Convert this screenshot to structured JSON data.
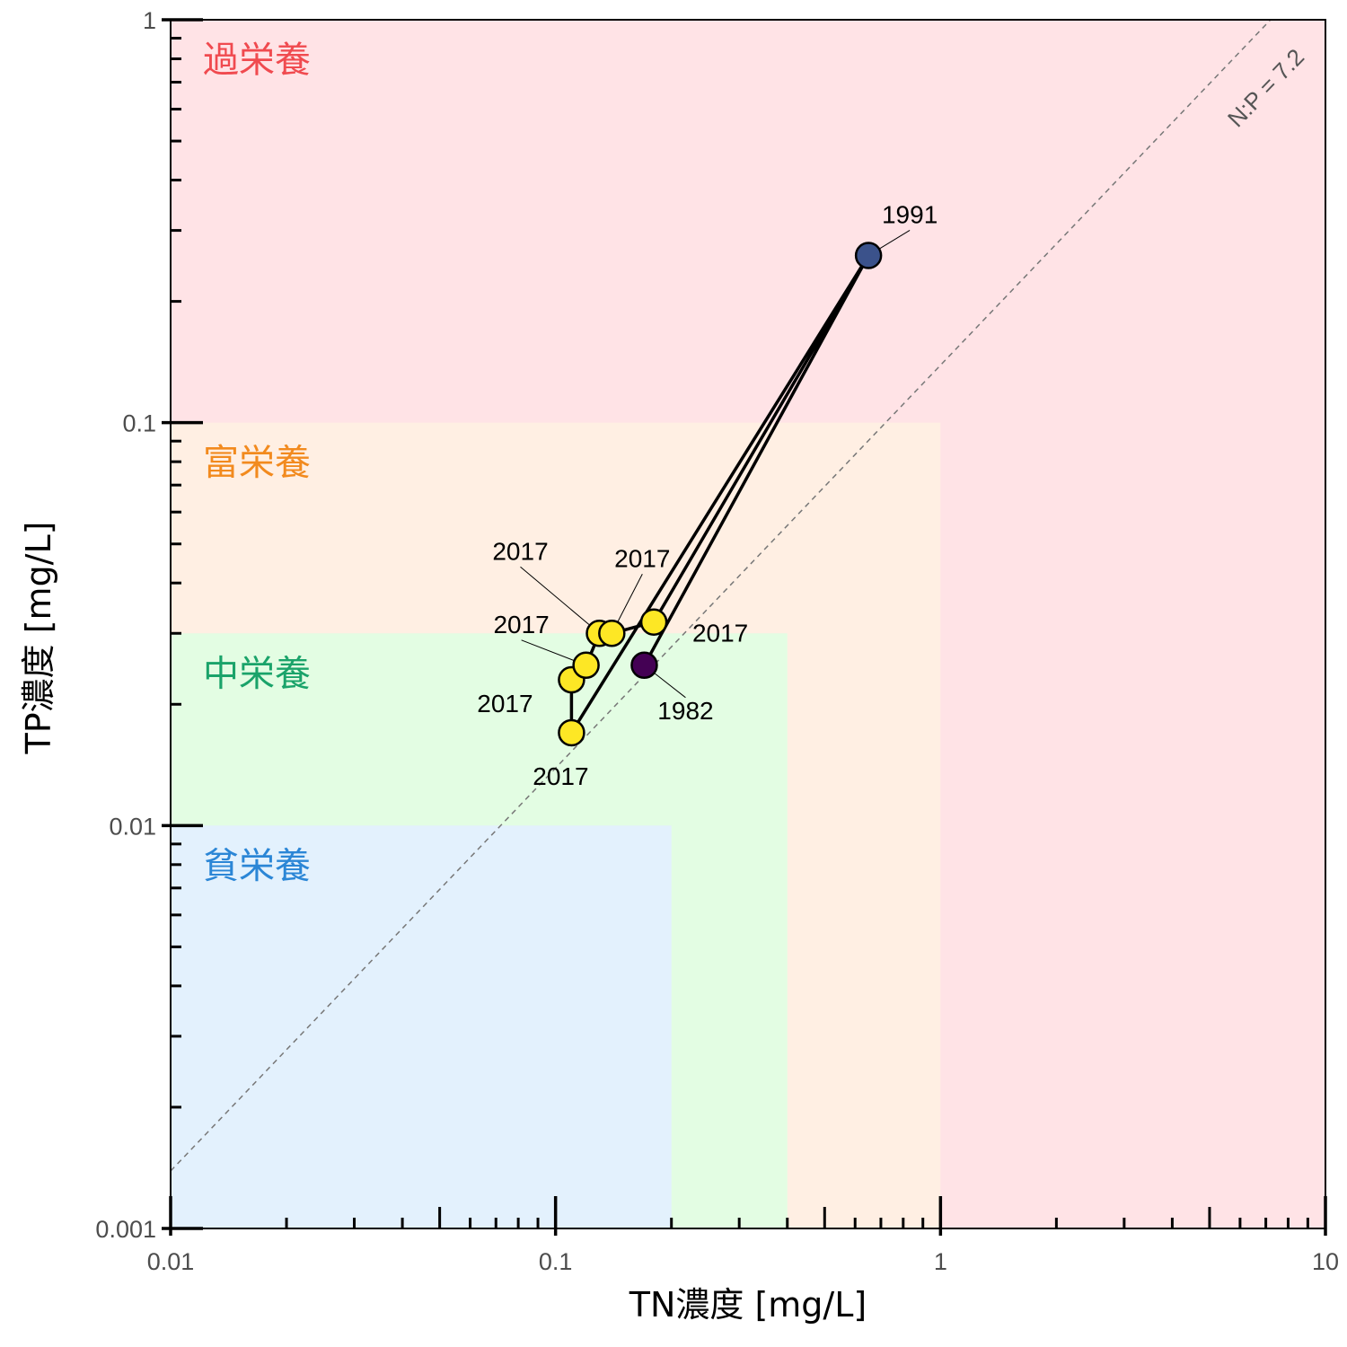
{
  "chart_data": {
    "type": "scatter",
    "x_label": "TN濃度 [mg/L]",
    "y_label": "TP濃度 [mg/L]",
    "x_scale": "log",
    "y_scale": "log",
    "xlim": [
      0.01,
      10
    ],
    "ylim": [
      0.001,
      1
    ],
    "x_ticks": [
      {
        "value": 0.01,
        "label": "0.01"
      },
      {
        "value": 0.1,
        "label": "0.1"
      },
      {
        "value": 1,
        "label": "1"
      },
      {
        "value": 10,
        "label": "10"
      }
    ],
    "y_ticks": [
      {
        "value": 0.001,
        "label": "0.001"
      },
      {
        "value": 0.01,
        "label": "0.01"
      },
      {
        "value": 0.1,
        "label": "0.1"
      },
      {
        "value": 1,
        "label": "1"
      }
    ],
    "zones": [
      {
        "label": "過栄養",
        "tn_max": 10,
        "tp_max": 1,
        "fill": "#ffe3e6",
        "text_color": "#f04a4f"
      },
      {
        "label": "富栄養",
        "tn_max": 1,
        "tp_max": 0.1,
        "fill": "#ffefe3",
        "text_color": "#f28a1e"
      },
      {
        "label": "中栄養",
        "tn_max": 0.4,
        "tp_max": 0.03,
        "fill": "#e3fde3",
        "text_color": "#1aa36a"
      },
      {
        "label": "貧栄養",
        "tn_max": 0.2,
        "tp_max": 0.01,
        "fill": "#e3f1fd",
        "text_color": "#2b86d6"
      }
    ],
    "reference_line": {
      "label": "N:P = 7.2",
      "ratio": 7.2,
      "color": "#777777"
    },
    "points": [
      {
        "tn": 0.17,
        "tp": 0.025,
        "label": "1982",
        "color": "#440154"
      },
      {
        "tn": 0.65,
        "tp": 0.26,
        "label": "1991",
        "color": "#3b528b"
      },
      {
        "tn": 0.11,
        "tp": 0.017,
        "label": "2017",
        "color": "#fde725"
      },
      {
        "tn": 0.11,
        "tp": 0.023,
        "label": "2017",
        "color": "#fde725"
      },
      {
        "tn": 0.12,
        "tp": 0.025,
        "label": "2017",
        "color": "#fde725"
      },
      {
        "tn": 0.13,
        "tp": 0.03,
        "label": "2017",
        "color": "#fde725"
      },
      {
        "tn": 0.14,
        "tp": 0.03,
        "label": "2017",
        "color": "#fde725"
      },
      {
        "tn": 0.18,
        "tp": 0.032,
        "label": "2017",
        "color": "#fde725"
      }
    ],
    "path_order": [
      0,
      1,
      2,
      3,
      4,
      5,
      6,
      7,
      1
    ]
  }
}
